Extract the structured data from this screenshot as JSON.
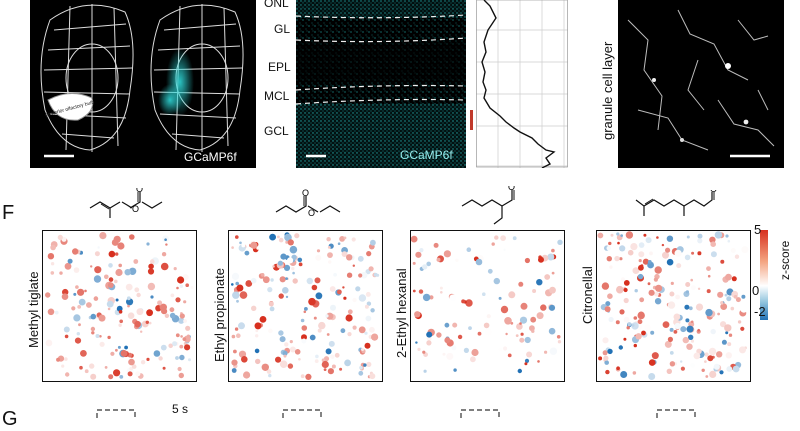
{
  "panel_top": {
    "brain_label": "GCaMP6f",
    "brain_region_label": "posterior olfactory bulb",
    "layers": [
      "ONL",
      "GL",
      "EPL",
      "MCL",
      "GCL"
    ],
    "section_label": "GCaMP6f",
    "gcl_image_label": "granule cell layer"
  },
  "panel_f": {
    "letter": "F",
    "odors": [
      "Methyl tiglate",
      "Ethyl propionate",
      "2-Ethyl hexanal",
      "Citronellal"
    ],
    "colorbar": {
      "title": "z-score",
      "max_label": "5",
      "mid_label": "0",
      "min_label": "-2",
      "colors": {
        "high": "#d7301f",
        "mid": "#ffffff",
        "low": "#2171b5"
      }
    }
  },
  "panel_g": {
    "letter": "G",
    "time_label": "5 s"
  }
}
